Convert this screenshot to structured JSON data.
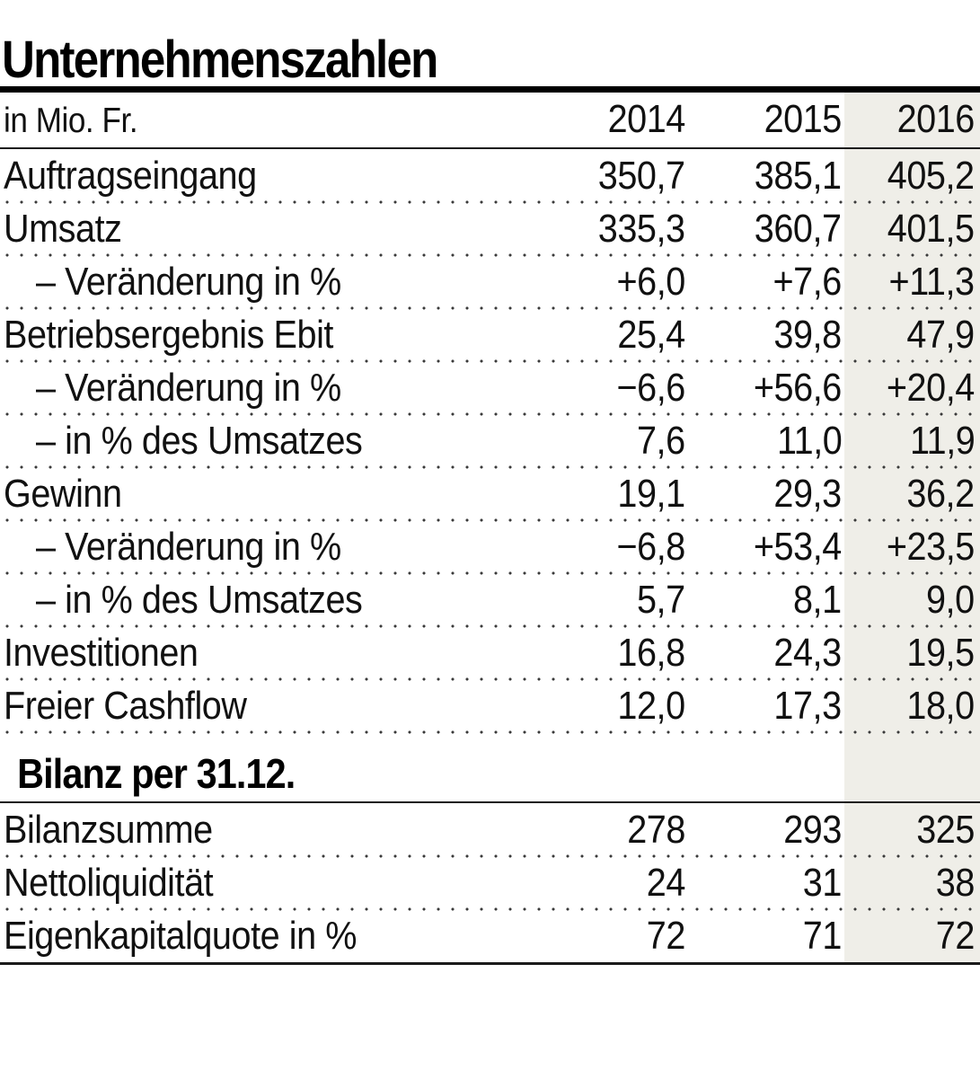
{
  "page_title": "Unternehmenszahlen",
  "chart_data": {
    "type": "table",
    "title": "Unternehmenszahlen",
    "unit_label": "in Mio. Fr.",
    "columns": [
      "2014",
      "2015",
      "2016"
    ],
    "highlighted_column": "2016",
    "highlight_color": "#efeee8",
    "sections": [
      {
        "heading": "",
        "rows": [
          {
            "label": "Auftragseingang",
            "values": [
              "350,7",
              "385,1",
              "405,2"
            ]
          },
          {
            "label": "Umsatz",
            "values": [
              "335,3",
              "360,7",
              "401,5"
            ]
          },
          {
            "label": "– Veränderung in %",
            "values": [
              "+6,0",
              "+7,6",
              "+11,3"
            ]
          },
          {
            "label": "Betriebsergebnis Ebit",
            "values": [
              "25,4",
              "39,8",
              "47,9"
            ]
          },
          {
            "label": "– Veränderung in %",
            "values": [
              "−6,6",
              "+56,6",
              "+20,4"
            ]
          },
          {
            "label": "– in % des Umsatzes",
            "values": [
              "7,6",
              "11,0",
              "11,9"
            ]
          },
          {
            "label": "Gewinn",
            "values": [
              "19,1",
              "29,3",
              "36,2"
            ]
          },
          {
            "label": "– Veränderung in %",
            "values": [
              "−6,8",
              "+53,4",
              "+23,5"
            ]
          },
          {
            "label": "– in % des Umsatzes",
            "values": [
              "5,7",
              "8,1",
              "9,0"
            ]
          },
          {
            "label": "Investitionen",
            "values": [
              "16,8",
              "24,3",
              "19,5"
            ]
          },
          {
            "label": "Freier Cashflow",
            "values": [
              "12,0",
              "17,3",
              "18,0"
            ]
          }
        ]
      },
      {
        "heading": "Bilanz per 31.12.",
        "rows": [
          {
            "label": "Bilanzsumme",
            "values": [
              "278",
              "293",
              "325"
            ]
          },
          {
            "label": "Nettoliquidität",
            "values": [
              "24",
              "31",
              "38"
            ]
          },
          {
            "label": "Eigenkapitalquote in %",
            "values": [
              "72",
              "71",
              "72"
            ]
          }
        ]
      }
    ]
  }
}
